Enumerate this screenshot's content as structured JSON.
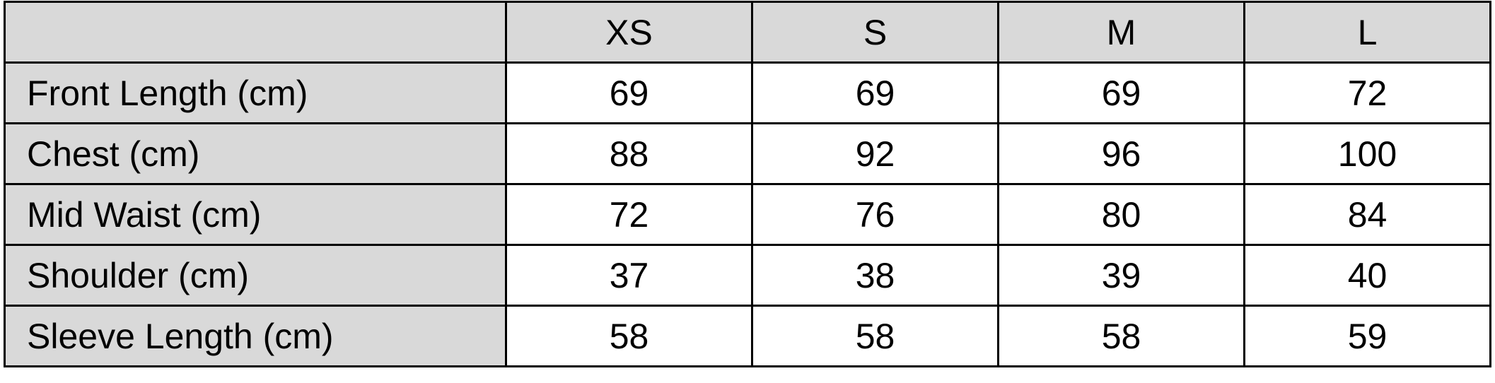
{
  "table": {
    "header_corner": "",
    "columns": [
      "XS",
      "S",
      "M",
      "L"
    ],
    "rows": [
      {
        "label": "Front Length (cm)",
        "values": [
          "69",
          "69",
          "69",
          "72"
        ]
      },
      {
        "label": "Chest (cm)",
        "values": [
          "88",
          "92",
          "96",
          "100"
        ]
      },
      {
        "label": "Mid Waist (cm)",
        "values": [
          "72",
          "76",
          "80",
          "84"
        ]
      },
      {
        "label": "Shoulder (cm)",
        "values": [
          "37",
          "38",
          "39",
          "40"
        ]
      },
      {
        "label": "Sleeve Length (cm)",
        "values": [
          "58",
          "58",
          "58",
          "59"
        ]
      }
    ],
    "colors": {
      "header_bg": "#d9d9d9",
      "cell_bg": "#ffffff",
      "border": "#000000"
    }
  }
}
